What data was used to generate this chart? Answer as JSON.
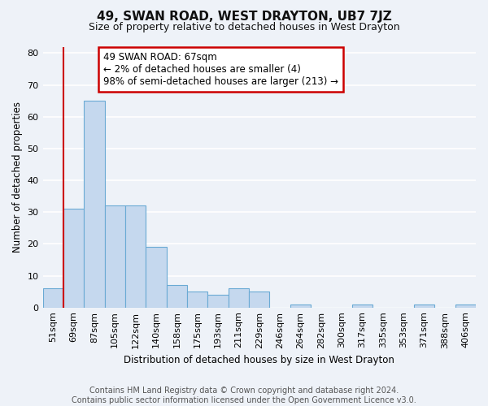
{
  "title": "49, SWAN ROAD, WEST DRAYTON, UB7 7JZ",
  "subtitle": "Size of property relative to detached houses in West Drayton",
  "xlabel": "Distribution of detached houses by size in West Drayton",
  "ylabel": "Number of detached properties",
  "bar_labels": [
    "51sqm",
    "69sqm",
    "87sqm",
    "105sqm",
    "122sqm",
    "140sqm",
    "158sqm",
    "175sqm",
    "193sqm",
    "211sqm",
    "229sqm",
    "246sqm",
    "264sqm",
    "282sqm",
    "300sqm",
    "317sqm",
    "335sqm",
    "353sqm",
    "371sqm",
    "388sqm",
    "406sqm"
  ],
  "bar_values": [
    6,
    31,
    65,
    32,
    32,
    19,
    7,
    5,
    4,
    6,
    5,
    0,
    1,
    0,
    0,
    1,
    0,
    0,
    1,
    0,
    1
  ],
  "bar_color": "#c5d8ee",
  "bar_edge_color": "#6aaad4",
  "reference_line_x": 1.0,
  "reference_line_color": "#cc0000",
  "ylim": [
    0,
    82
  ],
  "yticks": [
    0,
    10,
    20,
    30,
    40,
    50,
    60,
    70,
    80
  ],
  "annotation_text": "49 SWAN ROAD: 67sqm\n← 2% of detached houses are smaller (4)\n98% of semi-detached houses are larger (213) →",
  "annotation_box_color": "#ffffff",
  "annotation_box_edge": "#cc0000",
  "footer_line1": "Contains HM Land Registry data © Crown copyright and database right 2024.",
  "footer_line2": "Contains public sector information licensed under the Open Government Licence v3.0.",
  "background_color": "#eef2f8",
  "grid_color": "#ffffff",
  "title_fontsize": 11,
  "subtitle_fontsize": 9,
  "footer_fontsize": 7
}
